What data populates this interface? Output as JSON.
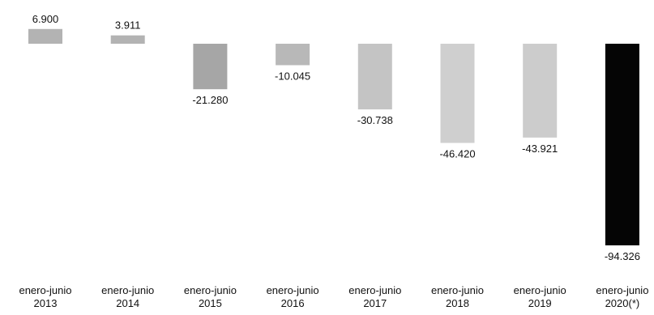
{
  "chart_data": {
    "type": "bar",
    "categories": [
      [
        "enero-junio",
        "2013"
      ],
      [
        "enero-junio",
        "2014"
      ],
      [
        "enero-junio",
        "2015"
      ],
      [
        "enero-junio",
        "2016"
      ],
      [
        "enero-junio",
        "2017"
      ],
      [
        "enero-junio",
        "2018"
      ],
      [
        "enero-junio",
        "2019"
      ],
      [
        "enero-junio",
        "2020(*)"
      ]
    ],
    "values": [
      6900,
      3911,
      -21280,
      -10045,
      -30738,
      -46420,
      -43921,
      -94326
    ],
    "value_labels": [
      "6.900",
      "3.911",
      "-21.280",
      "-10.045",
      "-30.738",
      "-46.420",
      "-43.921",
      "-94.326"
    ],
    "colors": [
      "#b3b3b3",
      "#b3b3b3",
      "#a6a6a6",
      "#b8b8b8",
      "#c4c4c4",
      "#cfcfcf",
      "#cccccc",
      "#050505"
    ],
    "ylim": [
      -94326,
      6900
    ],
    "grid": false,
    "legend": "none"
  }
}
